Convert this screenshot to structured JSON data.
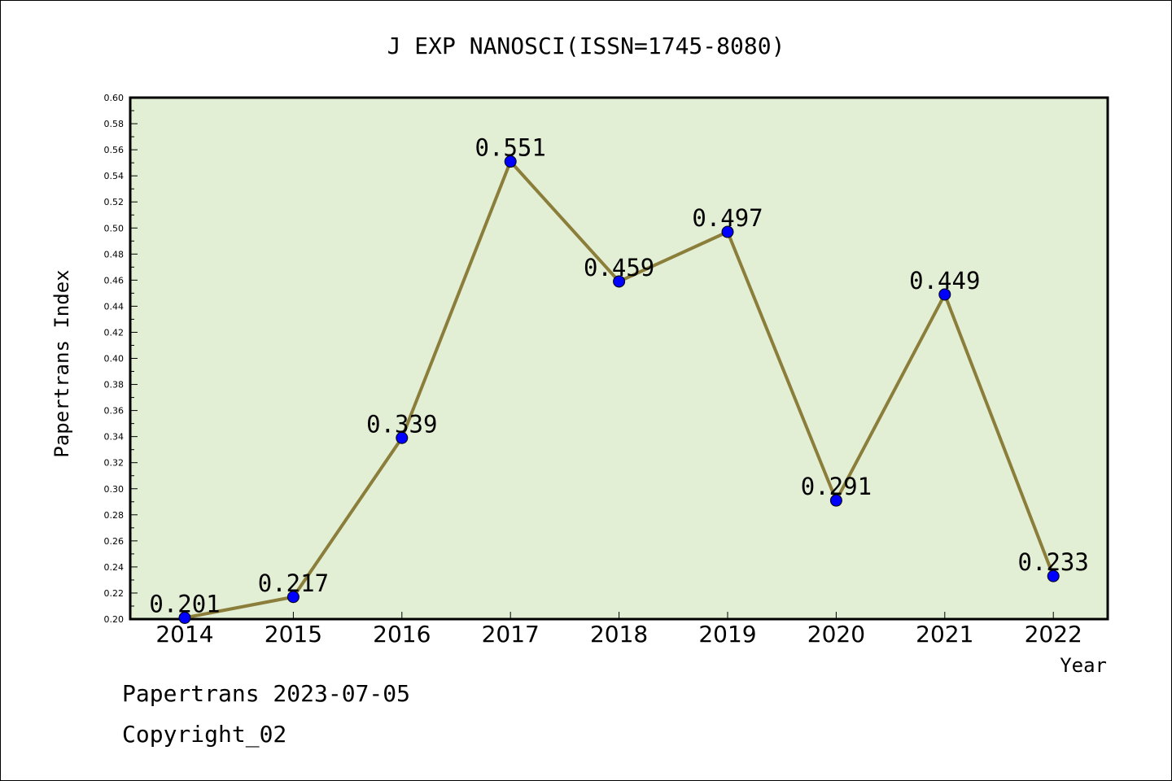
{
  "chart_data": {
    "type": "line",
    "title": "J EXP NANOSCI(ISSN=1745-8080)",
    "xlabel": "Year",
    "ylabel": "Papertrans Index",
    "categories": [
      "2014",
      "2015",
      "2016",
      "2017",
      "2018",
      "2019",
      "2020",
      "2021",
      "2022"
    ],
    "series": [
      {
        "values": [
          0.201,
          0.217,
          0.339,
          0.551,
          0.459,
          0.497,
          0.291,
          0.449,
          0.233
        ],
        "labels": [
          "0.201",
          "0.217",
          "0.339",
          "0.551",
          "0.459",
          "0.497",
          "0.291",
          "0.449",
          "0.233"
        ]
      }
    ],
    "ylim": [
      0.2,
      0.6
    ],
    "yticks": [
      "0.20",
      "0.22",
      "0.24",
      "0.26",
      "0.28",
      "0.30",
      "0.32",
      "0.34",
      "0.36",
      "0.38",
      "0.40",
      "0.42",
      "0.44",
      "0.46",
      "0.48",
      "0.50",
      "0.52",
      "0.54",
      "0.56",
      "0.58",
      "0.60"
    ],
    "grid": false,
    "legend": "none",
    "colors": {
      "plot_background": "#e2efd5",
      "line": "#8b7d3a",
      "marker": "#0000ff"
    }
  },
  "footer": {
    "date_line": "Papertrans 2023-07-05",
    "copyright": "Copyright_02"
  }
}
